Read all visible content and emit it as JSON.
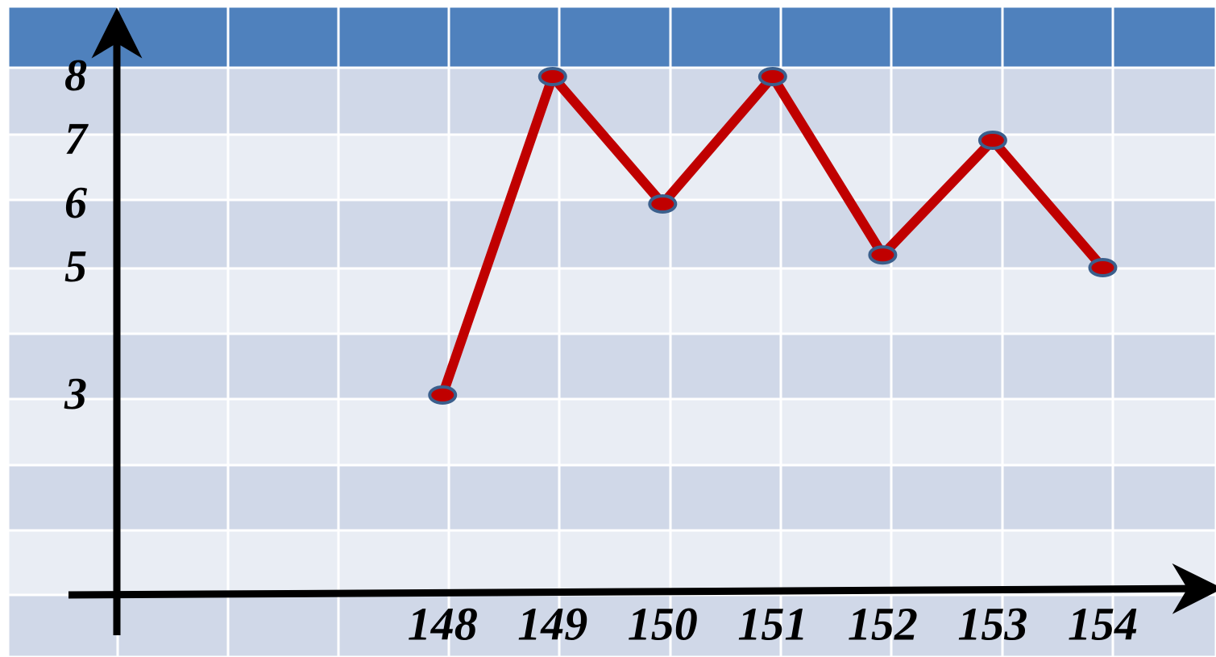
{
  "chart_data": {
    "type": "line",
    "x": [
      148,
      149,
      150,
      151,
      152,
      153,
      154
    ],
    "series": [
      {
        "color": "#c00000",
        "marker_fill": "#c00000",
        "marker_edge": "#3b5f8c",
        "values": [
          3,
          8,
          6,
          8,
          5.2,
          7,
          5
        ]
      }
    ],
    "xlim": [
      144.6,
      155
    ],
    "xticks": [
      148,
      149,
      150,
      151,
      152,
      153,
      154
    ],
    "ylim": [
      0,
      9
    ],
    "yticks": [
      3,
      5,
      6,
      7,
      8
    ]
  }
}
